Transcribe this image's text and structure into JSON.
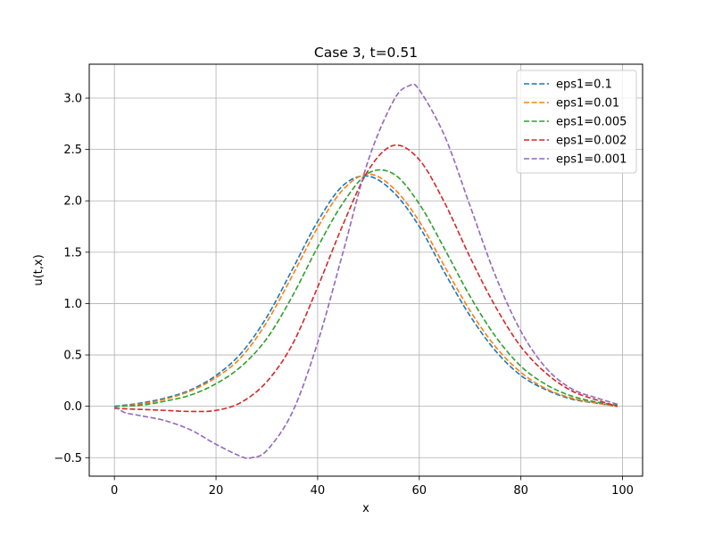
{
  "chart_data": {
    "type": "line",
    "title": "Case 3, t=0.51",
    "xlabel": "x",
    "ylabel": "u(t,x)",
    "xlim": [
      -4.95,
      103.95
    ],
    "ylim": [
      -0.68,
      3.33
    ],
    "xticks": [
      0,
      20,
      40,
      60,
      80,
      100
    ],
    "xtick_labels": [
      "0",
      "20",
      "40",
      "60",
      "80",
      "100"
    ],
    "yticks": [
      -0.5,
      0.0,
      0.5,
      1.0,
      1.5,
      2.0,
      2.5,
      3.0
    ],
    "ytick_labels": [
      "−0.5",
      "0.0",
      "0.5",
      "1.0",
      "1.5",
      "2.0",
      "2.5",
      "3.0"
    ],
    "grid": true,
    "legend_position": "upper right",
    "line_style": "dashed",
    "series": [
      {
        "name": "eps1=0.1",
        "color": "#1f77b4",
        "x": [
          0,
          5,
          10,
          15,
          20,
          25,
          30,
          35,
          40,
          45,
          50,
          55,
          60,
          65,
          70,
          75,
          80,
          85,
          90,
          95,
          99
        ],
        "y": [
          0.0,
          0.03,
          0.08,
          0.16,
          0.3,
          0.52,
          0.87,
          1.33,
          1.8,
          2.15,
          2.24,
          2.08,
          1.75,
          1.3,
          0.88,
          0.54,
          0.3,
          0.16,
          0.07,
          0.03,
          0.0
        ]
      },
      {
        "name": "eps1=0.01",
        "color": "#ff7f0e",
        "x": [
          0,
          5,
          10,
          15,
          20,
          25,
          30,
          35,
          40,
          45,
          50,
          55,
          60,
          65,
          70,
          75,
          80,
          85,
          90,
          95,
          99
        ],
        "y": [
          0.0,
          0.02,
          0.07,
          0.15,
          0.28,
          0.48,
          0.82,
          1.27,
          1.74,
          2.11,
          2.26,
          2.12,
          1.8,
          1.36,
          0.93,
          0.58,
          0.33,
          0.17,
          0.08,
          0.03,
          0.0
        ]
      },
      {
        "name": "eps1=0.005",
        "color": "#2ca02c",
        "x": [
          0,
          5,
          10,
          15,
          20,
          25,
          30,
          35,
          40,
          45,
          50,
          55,
          60,
          65,
          70,
          75,
          80,
          85,
          90,
          95,
          99
        ],
        "y": [
          0.0,
          0.01,
          0.05,
          0.11,
          0.22,
          0.39,
          0.66,
          1.07,
          1.55,
          1.98,
          2.27,
          2.26,
          1.97,
          1.53,
          1.07,
          0.68,
          0.39,
          0.21,
          0.1,
          0.04,
          0.01
        ]
      },
      {
        "name": "eps1=0.002",
        "color": "#d62728",
        "x": [
          0,
          5,
          10,
          15,
          20,
          25,
          30,
          35,
          40,
          45,
          50,
          55,
          60,
          65,
          70,
          75,
          80,
          85,
          90,
          95,
          99
        ],
        "y": [
          -0.02,
          -0.03,
          -0.04,
          -0.05,
          -0.04,
          0.04,
          0.24,
          0.6,
          1.16,
          1.77,
          2.3,
          2.54,
          2.4,
          1.98,
          1.45,
          0.97,
          0.58,
          0.32,
          0.15,
          0.06,
          0.0
        ]
      },
      {
        "name": "eps1=0.001",
        "color": "#9467bd",
        "x": [
          0,
          2,
          5,
          10,
          15,
          20,
          25,
          27,
          30,
          35,
          40,
          45,
          50,
          55,
          58,
          60,
          65,
          70,
          75,
          80,
          85,
          90,
          95,
          99
        ],
        "y": [
          0.0,
          -0.06,
          -0.09,
          -0.14,
          -0.23,
          -0.37,
          -0.49,
          -0.5,
          -0.43,
          -0.06,
          0.62,
          1.5,
          2.4,
          2.98,
          3.12,
          3.08,
          2.63,
          1.95,
          1.27,
          0.73,
          0.37,
          0.17,
          0.08,
          0.02
        ]
      }
    ]
  }
}
